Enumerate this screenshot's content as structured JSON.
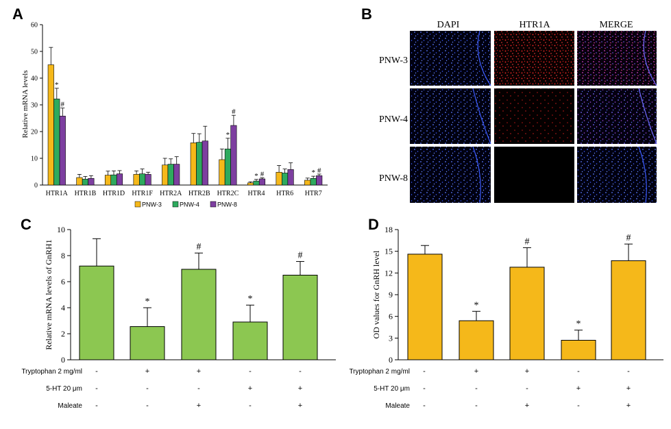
{
  "panels": {
    "A": "A",
    "B": "B",
    "C": "C",
    "D": "D"
  },
  "chart_data": [
    {
      "id": "A",
      "type": "bar",
      "ylabel": "Relative mRNA levels",
      "ylim": [
        0,
        60
      ],
      "yticks": [
        0,
        10,
        20,
        30,
        40,
        50,
        60
      ],
      "categories": [
        "HTR1A",
        "HTR1B",
        "HTR1D",
        "HTR1F",
        "HTR2A",
        "HTR2B",
        "HTR2C",
        "HTR4",
        "HTR6",
        "HTR7"
      ],
      "series": [
        {
          "name": "PNW-3",
          "color": "#f5b81a",
          "values": [
            45,
            2.8,
            3.7,
            4.0,
            7.5,
            15.8,
            9.5,
            0.8,
            4.8,
            1.8
          ],
          "errors": [
            6.5,
            1.2,
            1.5,
            1.3,
            2.5,
            3.5,
            4.0,
            0.4,
            2.5,
            0.8
          ],
          "marks": [
            "",
            "",
            "",
            "",
            "",
            "",
            "",
            "",
            "",
            ""
          ]
        },
        {
          "name": "PNW-4",
          "color": "#2eaa5e",
          "values": [
            32.2,
            2.2,
            3.8,
            4.2,
            7.8,
            16.0,
            13.5,
            1.5,
            4.5,
            2.5
          ],
          "errors": [
            4.0,
            1.0,
            1.5,
            1.8,
            2.0,
            3.2,
            4.0,
            0.6,
            1.5,
            0.8
          ],
          "marks": [
            "*",
            "",
            "",
            "",
            "",
            "",
            "*",
            "*",
            "",
            "*"
          ]
        },
        {
          "name": "PNW-8",
          "color": "#7d3fa0",
          "values": [
            25.8,
            2.5,
            4.2,
            4.0,
            7.8,
            16.5,
            22.3,
            2.3,
            5.8,
            3.5
          ],
          "errors": [
            3.0,
            1.0,
            1.2,
            0.8,
            2.8,
            5.5,
            3.8,
            0.4,
            2.5,
            0.6
          ],
          "marks": [
            "#",
            "",
            "",
            "",
            "",
            "",
            "#",
            "#",
            "",
            "#"
          ]
        }
      ]
    },
    {
      "id": "C",
      "type": "bar",
      "ylabel": "Relative mRNA levels of GnRH1",
      "ylim": [
        0,
        10
      ],
      "yticks": [
        0,
        2,
        4,
        6,
        8,
        10
      ],
      "color": "#8cc751",
      "values": [
        7.2,
        2.55,
        6.95,
        2.9,
        6.5
      ],
      "errors": [
        2.1,
        1.45,
        1.25,
        1.3,
        1.05
      ],
      "marks": [
        "",
        "*",
        "#",
        "*",
        "#"
      ]
    },
    {
      "id": "D",
      "type": "bar",
      "ylabel": "OD values for GnRH level",
      "ylim": [
        0,
        18
      ],
      "yticks": [
        0,
        3,
        6,
        9,
        12,
        15,
        18
      ],
      "color": "#f5b81a",
      "values": [
        14.6,
        5.4,
        12.8,
        2.7,
        13.7
      ],
      "errors": [
        1.2,
        1.3,
        2.7,
        1.4,
        2.3
      ],
      "marks": [
        "",
        "*",
        "#",
        "*",
        "#"
      ]
    }
  ],
  "conditions": [
    {
      "label": "Tryptophan 2 mg/ml",
      "signs": [
        "-",
        "+",
        "+",
        "-",
        "-"
      ]
    },
    {
      "label": "5-HT 20 μm",
      "signs": [
        "-",
        "-",
        "-",
        "+",
        "+"
      ]
    },
    {
      "label": "Maleate",
      "signs": [
        "-",
        "-",
        "+",
        "-",
        "+"
      ]
    }
  ],
  "micrograph": {
    "columns": [
      "DAPI",
      "HTR1A",
      "MERGE"
    ],
    "rows": [
      "PNW-3",
      "PNW-4",
      "PNW-8"
    ]
  }
}
